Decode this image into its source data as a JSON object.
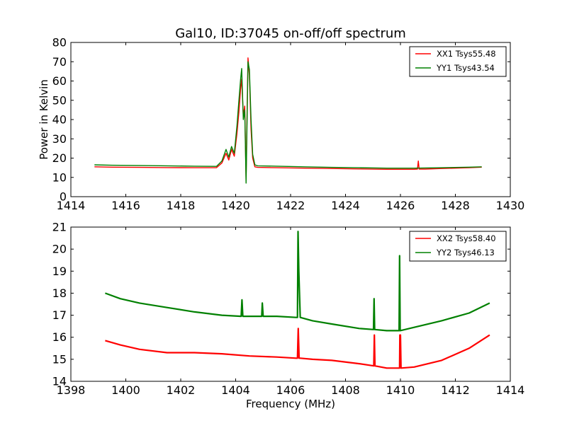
{
  "chart_data": [
    {
      "type": "line",
      "title": "Gal10, ID:37045 on-off/off spectrum",
      "xlabel": "",
      "ylabel": "Power in Kelvin",
      "xlim": [
        1414,
        1430
      ],
      "ylim": [
        0,
        80
      ],
      "xticks": [
        "1414",
        "1416",
        "1418",
        "1420",
        "1422",
        "1424",
        "1426",
        "1428",
        "1430"
      ],
      "yticks": [
        "0",
        "10",
        "20",
        "30",
        "40",
        "50",
        "60",
        "70",
        "80"
      ],
      "legend_position": "top-right",
      "series": [
        {
          "name": "XX1 Tsys55.48",
          "color": "#ff0000",
          "x": [
            1414.86,
            1415.5,
            1416.5,
            1417.5,
            1418.5,
            1419.3,
            1419.5,
            1419.65,
            1419.75,
            1419.85,
            1419.95,
            1420.05,
            1420.12,
            1420.18,
            1420.22,
            1420.28,
            1420.33,
            1420.38,
            1420.4,
            1420.45,
            1420.5,
            1420.56,
            1420.62,
            1420.7,
            1420.8,
            1421.5,
            1422.5,
            1423.5,
            1424.5,
            1425.5,
            1426.5,
            1426.62,
            1426.65,
            1426.68,
            1426.9,
            1427.5,
            1428.5,
            1428.96
          ],
          "y": [
            15.5,
            15.3,
            15.2,
            15.1,
            15.0,
            15.0,
            17.5,
            22.5,
            19.0,
            24.5,
            21.0,
            33.0,
            44.0,
            56.0,
            61.0,
            42.0,
            47.0,
            9.0,
            30.0,
            72.0,
            63.0,
            35.0,
            20.0,
            15.5,
            15.2,
            15.0,
            14.8,
            14.6,
            14.4,
            14.2,
            14.2,
            14.3,
            18.5,
            14.3,
            14.3,
            14.6,
            15.0,
            15.3
          ]
        },
        {
          "name": "YY1 Tsys43.54",
          "color": "#008000",
          "x": [
            1414.86,
            1415.5,
            1416.5,
            1417.5,
            1418.5,
            1419.3,
            1419.5,
            1419.65,
            1419.75,
            1419.85,
            1419.95,
            1420.05,
            1420.12,
            1420.18,
            1420.22,
            1420.28,
            1420.33,
            1420.38,
            1420.4,
            1420.45,
            1420.5,
            1420.56,
            1420.62,
            1420.7,
            1420.8,
            1421.5,
            1422.5,
            1423.5,
            1424.5,
            1425.5,
            1426.5,
            1427.5,
            1428.5,
            1428.96
          ],
          "y": [
            16.5,
            16.3,
            16.2,
            16.0,
            15.8,
            15.7,
            18.5,
            24.5,
            20.5,
            26.0,
            22.5,
            37.0,
            50.0,
            61.0,
            66.5,
            40.0,
            45.0,
            7.0,
            25.0,
            70.0,
            66.0,
            40.0,
            22.0,
            16.5,
            16.0,
            15.8,
            15.5,
            15.2,
            15.0,
            14.8,
            14.8,
            15.0,
            15.3,
            15.5
          ]
        }
      ]
    },
    {
      "type": "line",
      "title": "",
      "xlabel": "Frequency (MHz)",
      "ylabel": "",
      "xlim": [
        1398,
        1414
      ],
      "ylim": [
        14,
        21
      ],
      "xticks": [
        "1398",
        "1400",
        "1402",
        "1404",
        "1406",
        "1408",
        "1410",
        "1412",
        "1414"
      ],
      "yticks": [
        "14",
        "15",
        "16",
        "17",
        "18",
        "19",
        "20",
        "21"
      ],
      "legend_position": "top-right",
      "series": [
        {
          "name": "XX2 Tsys58.40",
          "color": "#ff0000",
          "x": [
            1399.25,
            1399.8,
            1400.5,
            1401.5,
            1402.5,
            1403.5,
            1404.5,
            1405.5,
            1406.2,
            1406.25,
            1406.28,
            1406.31,
            1406.35,
            1406.8,
            1407.5,
            1408.5,
            1409.03,
            1409.05,
            1409.07,
            1409.5,
            1409.97,
            1409.98,
            1410.0,
            1410.02,
            1410.5,
            1411.5,
            1412.5,
            1413.25
          ],
          "y": [
            15.85,
            15.65,
            15.45,
            15.3,
            15.3,
            15.25,
            15.15,
            15.1,
            15.05,
            15.05,
            16.4,
            15.05,
            15.05,
            15.0,
            14.95,
            14.8,
            14.7,
            16.1,
            14.7,
            14.6,
            14.6,
            16.1,
            16.1,
            14.6,
            14.65,
            14.95,
            15.5,
            16.1
          ]
        },
        {
          "name": "YY2 Tsys46.13",
          "color": "#008000",
          "x": [
            1399.25,
            1399.8,
            1400.5,
            1401.5,
            1402.5,
            1403.5,
            1404.2,
            1404.23,
            1404.26,
            1404.5,
            1404.95,
            1404.97,
            1405.0,
            1405.5,
            1406.2,
            1406.25,
            1406.27,
            1406.3,
            1406.35,
            1406.8,
            1407.5,
            1408.5,
            1409.02,
            1409.04,
            1409.06,
            1409.5,
            1409.95,
            1409.97,
            1409.99,
            1410.5,
            1411.5,
            1412.5,
            1413.25
          ],
          "y": [
            18.0,
            17.75,
            17.55,
            17.35,
            17.15,
            17.0,
            16.95,
            17.7,
            16.95,
            16.95,
            16.95,
            17.55,
            16.95,
            16.95,
            16.9,
            16.9,
            20.8,
            19.0,
            16.9,
            16.75,
            16.6,
            16.4,
            16.35,
            17.75,
            16.35,
            16.3,
            16.3,
            19.7,
            16.3,
            16.45,
            16.75,
            17.1,
            17.55
          ]
        }
      ]
    }
  ]
}
